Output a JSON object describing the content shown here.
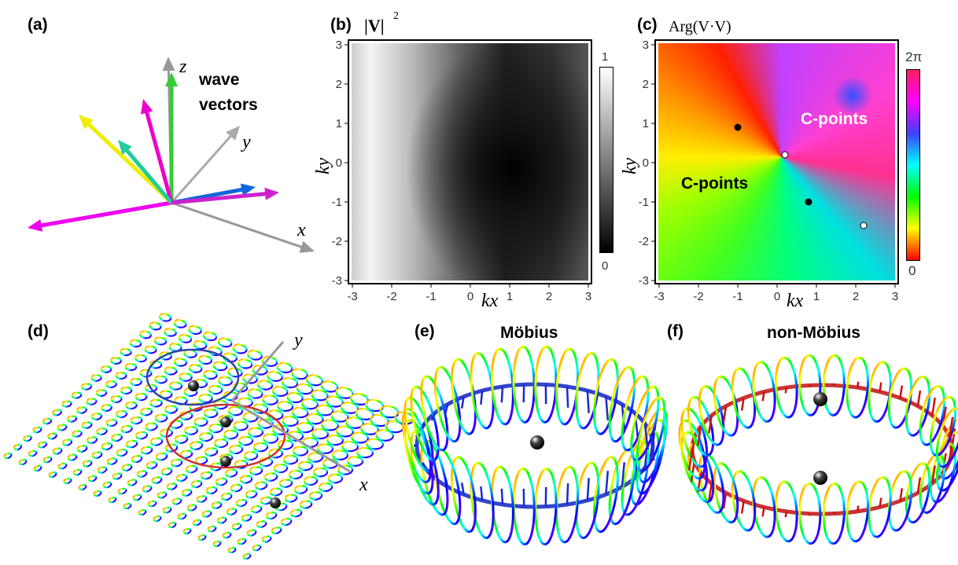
{
  "panel_a": {
    "label": "(a)",
    "text": [
      "wave",
      "vectors"
    ],
    "axis_labels": {
      "x": "x",
      "y": "y",
      "z": "z"
    }
  },
  "panel_b": {
    "label": "(b)",
    "title": "|V|",
    "title_sup": "2",
    "xlabel": "kx",
    "ylabel": "ky",
    "xlim": [
      -3,
      3
    ],
    "ylim": [
      -3,
      3
    ],
    "xticks": [
      -3,
      -2,
      -1,
      0,
      1,
      2,
      3
    ],
    "yticks": [
      -3,
      -2,
      -1,
      0,
      1,
      2,
      3
    ],
    "colorbar": {
      "max": 1,
      "min": 0
    }
  },
  "panel_c": {
    "label": "(c)",
    "title": "Arg(V·V)",
    "xlabel": "kx",
    "ylabel": "ky",
    "xlim": [
      -3,
      3
    ],
    "ylim": [
      -3,
      3
    ],
    "xticks": [
      -3,
      -2,
      -1,
      0,
      1,
      2,
      3
    ],
    "yticks": [
      -3,
      -2,
      -1,
      0,
      1,
      2,
      3
    ],
    "colorbar": {
      "max": "2π",
      "min": 0
    },
    "annotations": [
      "C-points",
      "C-points"
    ],
    "points": [
      {
        "x": -1,
        "y": 0.9,
        "color": "#000000"
      },
      {
        "x": 0.2,
        "y": 0.2,
        "color": "#ffffff"
      },
      {
        "x": 0.8,
        "y": -1,
        "color": "#000000"
      },
      {
        "x": 2.2,
        "y": -1.6,
        "color": "#ffffff"
      }
    ]
  },
  "panel_d": {
    "label": "(d)",
    "axis_labels": {
      "x": "x",
      "y": "y"
    }
  },
  "panel_e": {
    "label": "(e)",
    "title": "Möbius"
  },
  "panel_f": {
    "label": "(f)",
    "title": "non-Möbius"
  }
}
